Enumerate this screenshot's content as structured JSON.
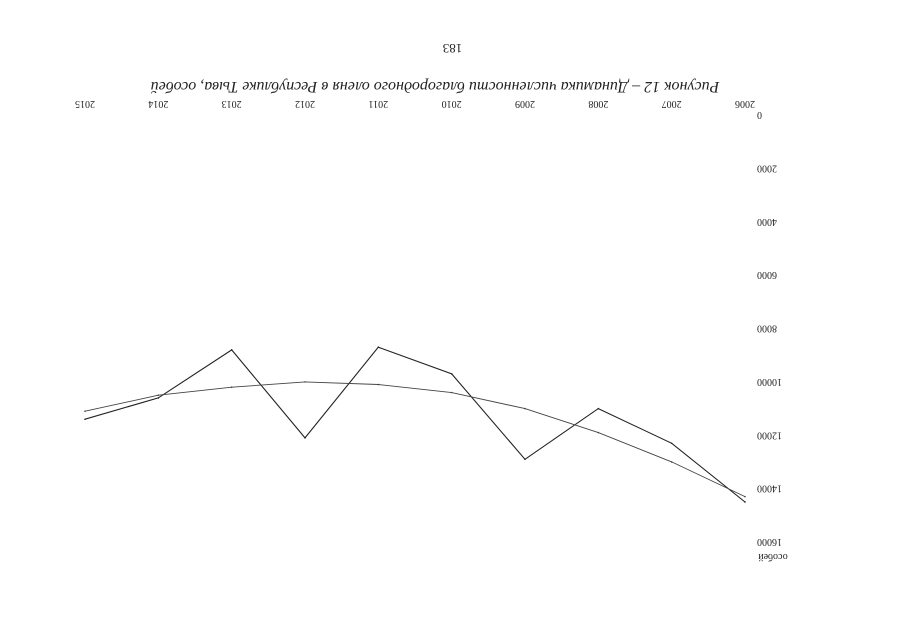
{
  "page_number": "183",
  "caption": "Рисунок 12 – Динамика численности благородного оленя в Республике Тыва, особей",
  "chart_data": {
    "type": "line",
    "title": "",
    "xlabel": "",
    "ylabel": "особей",
    "categories": [
      "2006",
      "2007",
      "2008",
      "2009",
      "2010",
      "2011",
      "2012",
      "2013",
      "2014",
      "2015"
    ],
    "ylim": [
      0,
      16000
    ],
    "yticks": [
      0,
      2000,
      4000,
      6000,
      8000,
      10000,
      12000,
      14000,
      16000
    ],
    "series": [
      {
        "values": [
          14500,
          12300,
          11000,
          12900,
          9700,
          8700,
          12100,
          8800,
          10600,
          11400
        ],
        "color": "#222222"
      },
      {
        "values": [
          14300,
          13000,
          11900,
          11000,
          10400,
          10100,
          10000,
          10200,
          10500,
          11100
        ],
        "color": "#444444"
      }
    ],
    "grid": false,
    "legend": "none"
  }
}
